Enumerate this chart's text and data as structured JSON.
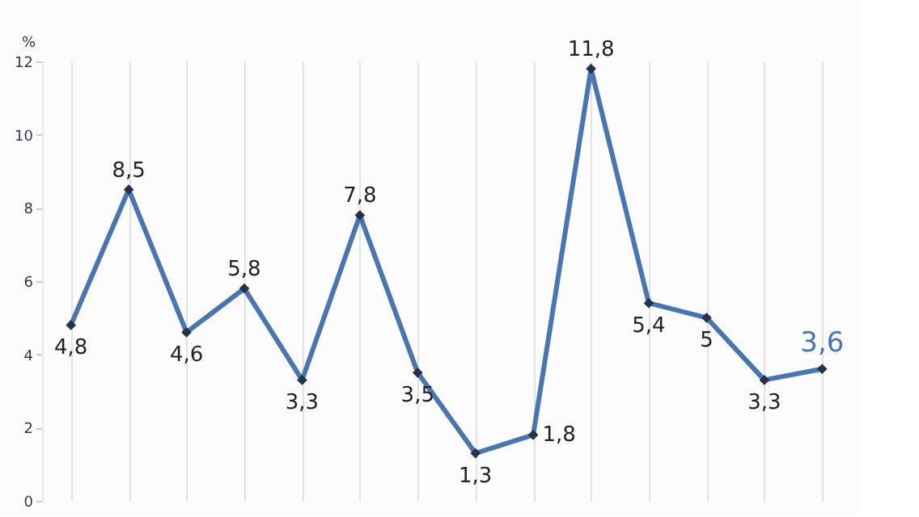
{
  "chart_data": {
    "type": "line",
    "ylabel": "%",
    "categories": [
      null,
      null,
      null,
      null,
      null,
      null,
      null,
      null,
      null,
      null,
      null,
      null,
      null,
      null
    ],
    "series": [
      {
        "color": "#4a76b0",
        "values": [
          4.8,
          8.5,
          4.6,
          5.8,
          3.3,
          7.8,
          3.5,
          1.3,
          1.8,
          11.8,
          5.4,
          5,
          3.3,
          3.6
        ],
        "value_labels": [
          "4,8",
          "8,5",
          "4,6",
          "5,8",
          "3,3",
          "7,8",
          "3,5",
          "1,3",
          "1,8",
          "11,8",
          "5,4",
          "5",
          "3,3",
          "3,6"
        ]
      }
    ],
    "ylim": [
      0,
      12
    ],
    "yticks": [
      0,
      2,
      4,
      6,
      8,
      10,
      12
    ],
    "grid": "x",
    "marker": "diamond",
    "line_style": "solid",
    "tick_labels": "y"
  }
}
